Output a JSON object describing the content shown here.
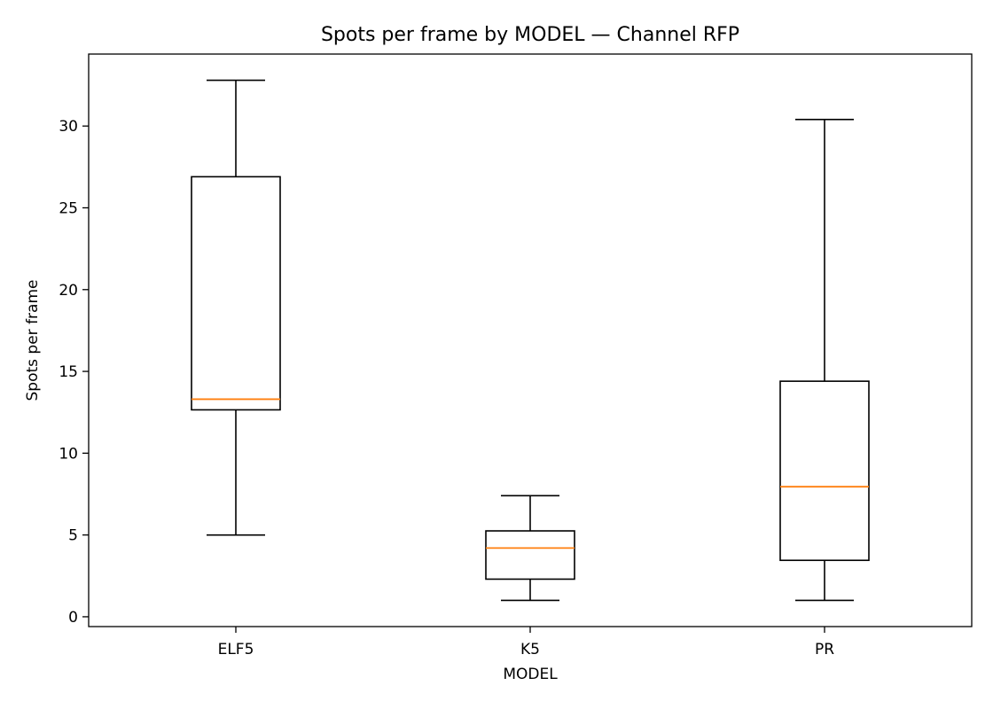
{
  "chart_data": {
    "type": "box",
    "title": "Spots per frame by MODEL — Channel RFP",
    "xlabel": "MODEL",
    "ylabel": "Spots per frame",
    "ylim": [
      -0.6,
      34.4
    ],
    "yticks": [
      0,
      5,
      10,
      15,
      20,
      25,
      30
    ],
    "categories": [
      "ELF5",
      "K5",
      "PR"
    ],
    "boxes": [
      {
        "category": "ELF5",
        "whisker_low": 5.0,
        "q1": 12.65,
        "median": 13.3,
        "q3": 26.9,
        "whisker_high": 32.8
      },
      {
        "category": "K5",
        "whisker_low": 1.0,
        "q1": 2.3,
        "median": 4.2,
        "q3": 5.25,
        "whisker_high": 7.4
      },
      {
        "category": "PR",
        "whisker_low": 1.0,
        "q1": 3.45,
        "median": 7.95,
        "q3": 14.4,
        "whisker_high": 30.4
      }
    ],
    "grid": false,
    "colors": {
      "box": "#000000",
      "median": "#ff7f0e"
    }
  }
}
